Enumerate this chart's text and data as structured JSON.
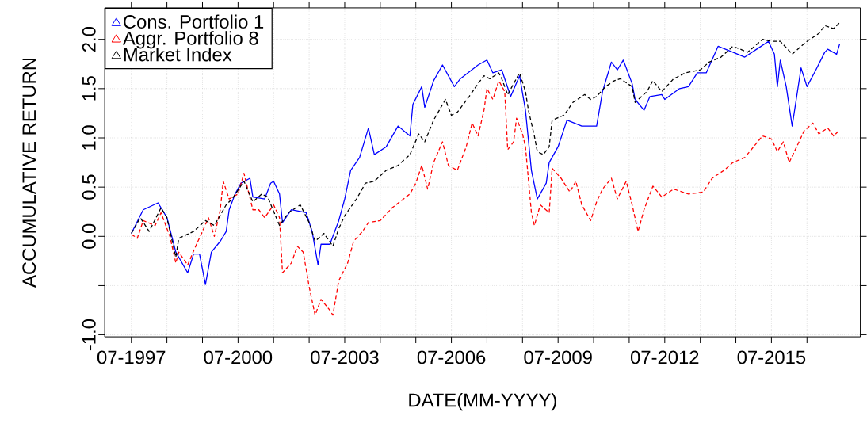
{
  "chart_data": {
    "type": "line",
    "xlabel": "DATE(MM-YYYY)",
    "ylabel": "ACCUMULATIVE RETURN",
    "xlim": [
      "1996-10",
      "2018-01"
    ],
    "ylim": [
      -1.02,
      2.32
    ],
    "xticks": [
      {
        "value": "1997-07",
        "label": "07-1997"
      },
      {
        "value": "1998-07",
        "label": null
      },
      {
        "value": "1999-07",
        "label": null
      },
      {
        "value": "2000-07",
        "label": "07-2000"
      },
      {
        "value": "2001-07",
        "label": null
      },
      {
        "value": "2002-07",
        "label": null
      },
      {
        "value": "2003-07",
        "label": "07-2003"
      },
      {
        "value": "2004-07",
        "label": null
      },
      {
        "value": "2005-07",
        "label": null
      },
      {
        "value": "2006-07",
        "label": "07-2006"
      },
      {
        "value": "2007-07",
        "label": null
      },
      {
        "value": "2008-07",
        "label": null
      },
      {
        "value": "2009-07",
        "label": "07-2009"
      },
      {
        "value": "2010-07",
        "label": null
      },
      {
        "value": "2011-07",
        "label": null
      },
      {
        "value": "2012-07",
        "label": "07-2012"
      },
      {
        "value": "2013-07",
        "label": null
      },
      {
        "value": "2014-07",
        "label": null
      },
      {
        "value": "2015-07",
        "label": "07-2015"
      },
      {
        "value": "2016-07",
        "label": null
      }
    ],
    "yticks": [
      {
        "value": -1,
        "label": "-1.0"
      },
      {
        "value": -0.5,
        "label": null
      },
      {
        "value": 0,
        "label": "0.0"
      },
      {
        "value": 0.5,
        "label": "0.5"
      },
      {
        "value": 1,
        "label": "1.0"
      },
      {
        "value": 1.5,
        "label": "1.5"
      },
      {
        "value": 2,
        "label": "2.0"
      }
    ],
    "grid": true,
    "legend": "top left",
    "series": [
      {
        "name": "Cons. Portfolio 1",
        "color": "#0000ff",
        "line_style": "solid",
        "x": [
          "1997-07",
          "1997-11",
          "1998-04",
          "1998-07",
          "1998-10",
          "1999-02",
          "1999-04",
          "1999-06",
          "1999-08",
          "1999-10",
          "2000-01",
          "2000-03",
          "2000-04",
          "2000-06",
          "2000-08",
          "2000-11",
          "2000-12",
          "2001-04",
          "2001-06",
          "2001-07",
          "2001-09",
          "2001-10",
          "2002-01",
          "2002-06",
          "2002-08",
          "2002-10",
          "2002-11",
          "2003-02",
          "2003-05",
          "2003-07",
          "2003-09",
          "2003-12",
          "2004-03",
          "2004-05",
          "2004-09",
          "2005-01",
          "2005-05",
          "2005-06",
          "2005-09",
          "2005-10",
          "2006-01",
          "2006-04",
          "2006-08",
          "2006-10",
          "2007-04",
          "2007-07",
          "2007-09",
          "2007-12",
          "2008-03",
          "2008-06",
          "2008-08",
          "2008-10",
          "2008-12",
          "2009-03",
          "2009-04",
          "2009-07",
          "2009-10",
          "2010-03",
          "2010-08",
          "2010-10",
          "2011-01",
          "2011-03",
          "2011-05",
          "2011-08",
          "2011-09",
          "2011-12",
          "2012-02",
          "2012-06",
          "2012-07",
          "2012-12",
          "2013-03",
          "2013-06",
          "2013-09",
          "2014-01",
          "2014-06",
          "2014-10",
          "2015-02",
          "2015-06",
          "2015-08",
          "2015-09",
          "2015-10",
          "2015-12",
          "2016-02",
          "2016-05",
          "2016-07",
          "2016-10",
          "2017-01",
          "2017-02",
          "2017-05",
          "2017-06"
        ],
        "values": [
          0.03,
          0.27,
          0.34,
          0.19,
          -0.16,
          -0.37,
          -0.18,
          -0.18,
          -0.49,
          -0.16,
          -0.05,
          0.05,
          0.27,
          0.43,
          0.54,
          0.59,
          0.4,
          0.38,
          0.54,
          0.56,
          0.43,
          0.14,
          0.27,
          0.24,
          0.05,
          -0.29,
          -0.08,
          -0.08,
          0.16,
          0.38,
          0.67,
          0.8,
          1.1,
          0.83,
          0.91,
          1.12,
          1.02,
          1.34,
          1.52,
          1.31,
          1.58,
          1.74,
          1.52,
          1.6,
          1.74,
          1.79,
          1.66,
          1.69,
          1.42,
          1.63,
          1.28,
          0.67,
          0.38,
          0.54,
          0.75,
          0.91,
          1.18,
          1.12,
          1.12,
          1.47,
          1.77,
          1.69,
          1.79,
          1.55,
          1.39,
          1.28,
          1.42,
          1.44,
          1.39,
          1.5,
          1.52,
          1.66,
          1.66,
          1.93,
          1.87,
          1.82,
          1.9,
          1.98,
          1.85,
          1.52,
          1.79,
          1.52,
          1.12,
          1.71,
          1.52,
          1.69,
          1.87,
          1.9,
          1.85,
          1.95
        ]
      },
      {
        "name": "Aggr. Portfolio 8",
        "color": "#ff0000",
        "line_style": "dashed",
        "x": [
          "1997-07",
          "1997-09",
          "1997-11",
          "1998-03",
          "1998-05",
          "1998-08",
          "1998-10",
          "1998-11",
          "1999-02",
          "1999-05",
          "1999-07",
          "1999-09",
          "1999-11",
          "2000-01",
          "2000-02",
          "2000-04",
          "2000-07",
          "2000-09",
          "2000-12",
          "2001-02",
          "2001-04",
          "2001-07",
          "2001-09",
          "2001-10",
          "2002-01",
          "2002-03",
          "2002-05",
          "2002-07",
          "2002-09",
          "2002-11",
          "2003-02",
          "2003-03",
          "2003-05",
          "2003-08",
          "2003-10",
          "2004-01",
          "2004-03",
          "2004-07",
          "2004-11",
          "2005-05",
          "2005-07",
          "2005-09",
          "2005-11",
          "2006-01",
          "2006-04",
          "2006-06",
          "2006-09",
          "2006-12",
          "2007-02",
          "2007-04",
          "2007-06",
          "2007-07",
          "2007-09",
          "2007-11",
          "2008-01",
          "2008-02",
          "2008-04",
          "2008-05",
          "2008-07",
          "2008-08",
          "2008-10",
          "2008-11",
          "2009-01",
          "2009-04",
          "2009-05",
          "2009-08",
          "2009-11",
          "2010-01",
          "2010-03",
          "2010-06",
          "2010-08",
          "2010-10",
          "2011-01",
          "2011-03",
          "2011-06",
          "2011-08",
          "2011-10",
          "2011-12",
          "2012-03",
          "2012-06",
          "2012-10",
          "2013-03",
          "2013-08",
          "2013-11",
          "2014-03",
          "2014-06",
          "2014-10",
          "2015-01",
          "2015-04",
          "2015-07",
          "2015-09",
          "2015-11",
          "2016-01",
          "2016-04",
          "2016-06",
          "2016-09",
          "2016-11",
          "2017-02",
          "2017-04",
          "2017-06"
        ],
        "values": [
          0.02,
          -0.02,
          0.16,
          0.11,
          0.24,
          0.0,
          -0.27,
          -0.16,
          -0.29,
          -0.08,
          0.05,
          0.19,
          0.0,
          0.27,
          0.56,
          0.38,
          0.43,
          0.64,
          0.27,
          0.27,
          0.19,
          0.32,
          0.19,
          -0.37,
          -0.27,
          -0.1,
          -0.16,
          -0.51,
          -0.8,
          -0.64,
          -0.75,
          -0.8,
          -0.45,
          -0.27,
          -0.05,
          0.05,
          0.14,
          0.16,
          0.29,
          0.43,
          0.54,
          0.72,
          0.48,
          0.75,
          0.96,
          0.72,
          0.67,
          0.91,
          1.15,
          1.02,
          1.28,
          1.5,
          1.39,
          1.58,
          1.47,
          0.88,
          0.96,
          1.2,
          1.04,
          0.91,
          0.24,
          0.11,
          0.32,
          0.24,
          0.69,
          0.59,
          0.45,
          0.56,
          0.32,
          0.16,
          0.35,
          0.48,
          0.59,
          0.38,
          0.56,
          0.32,
          0.05,
          0.27,
          0.51,
          0.4,
          0.48,
          0.43,
          0.45,
          0.59,
          0.67,
          0.75,
          0.8,
          0.91,
          1.02,
          0.99,
          0.86,
          0.96,
          0.75,
          0.94,
          1.07,
          1.15,
          1.04,
          1.1,
          1.02,
          1.08
        ]
      },
      {
        "name": "Market Index",
        "color": "#000000",
        "line_style": "dashed",
        "x": [
          "1997-07",
          "1997-10",
          "1998-01",
          "1998-05",
          "1998-07",
          "1998-10",
          "1998-11",
          "1999-04",
          "1999-08",
          "1999-11",
          "2000-03",
          "2000-05",
          "2000-09",
          "2000-12",
          "2001-03",
          "2001-05",
          "2001-09",
          "2001-12",
          "2002-04",
          "2002-07",
          "2002-09",
          "2002-12",
          "2003-03",
          "2003-05",
          "2003-07",
          "2003-11",
          "2004-02",
          "2004-05",
          "2004-09",
          "2005-01",
          "2005-05",
          "2005-08",
          "2005-10",
          "2006-01",
          "2006-05",
          "2006-07",
          "2006-09",
          "2007-01",
          "2007-04",
          "2007-06",
          "2007-08",
          "2007-11",
          "2007-12",
          "2008-02",
          "2008-06",
          "2008-08",
          "2008-09",
          "2008-11",
          "2008-12",
          "2009-02",
          "2009-04",
          "2009-05",
          "2009-09",
          "2009-12",
          "2010-04",
          "2010-06",
          "2010-08",
          "2010-11",
          "2011-02",
          "2011-04",
          "2011-08",
          "2011-09",
          "2012-01",
          "2012-03",
          "2012-06",
          "2012-10",
          "2013-02",
          "2013-07",
          "2013-10",
          "2014-02",
          "2014-06",
          "2014-11",
          "2015-04",
          "2015-07",
          "2015-10",
          "2016-02",
          "2016-05",
          "2016-07",
          "2016-11",
          "2017-01",
          "2017-04",
          "2017-06"
        ],
        "values": [
          0.03,
          0.19,
          0.05,
          0.29,
          0.19,
          -0.21,
          -0.02,
          0.05,
          0.16,
          0.11,
          0.32,
          0.38,
          0.56,
          0.35,
          0.43,
          0.4,
          0.11,
          0.24,
          0.32,
          0.14,
          -0.05,
          0.03,
          -0.1,
          0.08,
          0.21,
          0.38,
          0.54,
          0.56,
          0.67,
          0.72,
          0.83,
          1.04,
          0.96,
          1.18,
          1.39,
          1.23,
          1.26,
          1.42,
          1.55,
          1.63,
          1.6,
          1.66,
          1.6,
          1.44,
          1.66,
          1.47,
          1.28,
          1.02,
          0.86,
          0.83,
          0.91,
          1.18,
          1.23,
          1.36,
          1.44,
          1.39,
          1.42,
          1.52,
          1.58,
          1.6,
          1.52,
          1.36,
          1.47,
          1.58,
          1.47,
          1.6,
          1.66,
          1.69,
          1.77,
          1.82,
          1.93,
          1.87,
          2.0,
          1.98,
          1.98,
          1.85,
          1.93,
          1.98,
          2.06,
          2.14,
          2.11,
          2.17
        ]
      }
    ]
  }
}
